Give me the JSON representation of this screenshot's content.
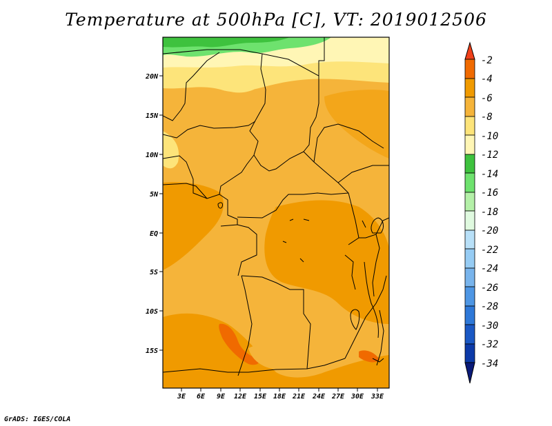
{
  "title": "Temperature at 500hPa [C], VT: 2019012506",
  "footer": "GrADS: IGES/COLA",
  "map": {
    "lat_labels": [
      "20N",
      "15N",
      "10N",
      "5N",
      "EQ",
      "5S",
      "10S",
      "15S"
    ],
    "lon_labels": [
      "3E",
      "6E",
      "9E",
      "12E",
      "15E",
      "18E",
      "21E",
      "24E",
      "27E",
      "30E",
      "33E"
    ]
  },
  "colorbar": {
    "labels": [
      "-2",
      "-4",
      "-6",
      "-8",
      "-10",
      "-12",
      "-14",
      "-16",
      "-18",
      "-20",
      "-22",
      "-24",
      "-26",
      "-28",
      "-30",
      "-32",
      "-34"
    ],
    "colors": {
      "gt_-2": "#f0401a",
      "-4_-2": "#f06a00",
      "-6_-4": "#f09a00",
      "-8_-6": "#f5b43a",
      "-10_-8": "#fde47a",
      "-12_-10": "#fff6b5",
      "-14_-12": "#3ec23e",
      "-16_-14": "#6ee26e",
      "-18_-16": "#b4f0a8",
      "-20_-18": "#e0fae0",
      "-22_-20": "#b8e0f8",
      "-24_-22": "#96ccf4",
      "-26_-24": "#78b4ec",
      "-28_-26": "#4e96e4",
      "-30_-28": "#2e78d8",
      "-32_-30": "#1a58c4",
      "-34_-32": "#0c3aa8",
      "lt_-34": "#0a1a78"
    }
  }
}
